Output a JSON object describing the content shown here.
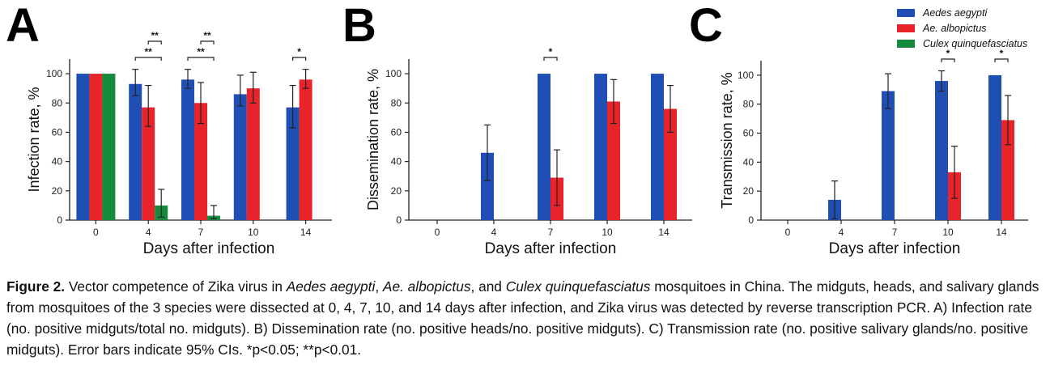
{
  "panel_letters": [
    "A",
    "B",
    "C"
  ],
  "legend": [
    {
      "name": "Aedes aegypti",
      "color": "#1f4fb4"
    },
    {
      "name": "Ae. albopictus",
      "color": "#e8242a"
    },
    {
      "name": "Culex quinquefasciatus",
      "color": "#158a3c"
    }
  ],
  "caption": {
    "label": "Figure 2.",
    "t1": " Vector competence of Zika virus in ",
    "i1": "Aedes aegypti",
    "t2": ", ",
    "i2": "Ae. albopictus",
    "t3": ", and ",
    "i3": "Culex quinquefasciatus",
    "t4": " mosquitoes in China. The midguts, heads, and salivary glands from mosquitoes of the 3 species were dissected at 0, 4, 7, 10, and 14 days after infection, and Zika virus was detected by reverse transcription PCR. A) Infection rate (no. positive midguts/total no. midguts). B) Dissemination rate (no. positive heads/no. positive midguts). C) Transmission rate (no. positive salivary glands/no. positive midguts). Error bars indicate 95% CIs. *p<0.05; **p<0.01."
  },
  "chart_data": [
    {
      "type": "bar",
      "panel": "A",
      "xlabel": "Days after infection",
      "ylabel": "Infection rate, %",
      "categories": [
        "0",
        "4",
        "7",
        "10",
        "14"
      ],
      "ylim": [
        0,
        110
      ],
      "yticks": [
        0,
        20,
        40,
        60,
        80,
        100
      ],
      "grid": false,
      "series": [
        {
          "name": "Aedes aegypti",
          "values": [
            100,
            93,
            96,
            86,
            77
          ],
          "err_low": [
            0,
            8,
            6,
            8,
            14
          ],
          "err_high": [
            0,
            10,
            7,
            13,
            15
          ]
        },
        {
          "name": "Ae. albopictus",
          "values": [
            100,
            77,
            80,
            90,
            96
          ],
          "err_low": [
            0,
            13,
            14,
            10,
            6
          ],
          "err_high": [
            0,
            15,
            14,
            11,
            7
          ]
        },
        {
          "name": "Culex quinquefasciatus",
          "values": [
            100,
            10,
            3,
            null,
            null
          ],
          "err_low": [
            0,
            8,
            2,
            0,
            0
          ],
          "err_high": [
            0,
            11,
            7,
            0,
            0
          ]
        }
      ],
      "significance": [
        {
          "category": "4",
          "from": "Aedes aegypti",
          "to": "Culex quinquefasciatus",
          "label": "**",
          "level": 1
        },
        {
          "category": "4",
          "from": "Ae. albopictus",
          "to": "Culex quinquefasciatus",
          "label": "**",
          "level": 2
        },
        {
          "category": "7",
          "from": "Aedes aegypti",
          "to": "Culex quinquefasciatus",
          "label": "**",
          "level": 1
        },
        {
          "category": "7",
          "from": "Ae. albopictus",
          "to": "Culex quinquefasciatus",
          "label": "**",
          "level": 2
        },
        {
          "category": "14",
          "from": "Aedes aegypti",
          "to": "Ae. albopictus",
          "label": "*",
          "level": 1
        }
      ]
    },
    {
      "type": "bar",
      "panel": "B",
      "xlabel": "Days after infection",
      "ylabel": "Dissemination rate, %",
      "categories": [
        "0",
        "4",
        "7",
        "10",
        "14"
      ],
      "ylim": [
        0,
        110
      ],
      "yticks": [
        0,
        20,
        40,
        60,
        80,
        100
      ],
      "grid": false,
      "series": [
        {
          "name": "Aedes aegypti",
          "values": [
            null,
            46,
            100,
            100,
            100
          ],
          "err_low": [
            0,
            19,
            0,
            0,
            0
          ],
          "err_high": [
            0,
            19,
            0,
            0,
            0
          ]
        },
        {
          "name": "Ae. albopictus",
          "values": [
            null,
            null,
            29,
            81,
            76
          ],
          "err_low": [
            0,
            0,
            19,
            15,
            16
          ],
          "err_high": [
            0,
            0,
            19,
            15,
            16
          ]
        }
      ],
      "significance": [
        {
          "category": "7",
          "from": "Aedes aegypti",
          "to": "Ae. albopictus",
          "label": "*",
          "level": 1
        }
      ]
    },
    {
      "type": "bar",
      "panel": "C",
      "xlabel": "Days after infection",
      "ylabel": "Transmission rate, %",
      "categories": [
        "0",
        "4",
        "7",
        "10",
        "14"
      ],
      "ylim": [
        0,
        110
      ],
      "yticks": [
        0,
        20,
        40,
        60,
        80,
        100
      ],
      "grid": false,
      "series": [
        {
          "name": "Aedes aegypti",
          "values": [
            null,
            14,
            89,
            96,
            100
          ],
          "err_low": [
            0,
            13,
            12,
            7,
            0
          ],
          "err_high": [
            0,
            13,
            12,
            7,
            0
          ]
        },
        {
          "name": "Ae. albopictus",
          "values": [
            null,
            null,
            null,
            33,
            69
          ],
          "err_low": [
            0,
            0,
            0,
            18,
            17
          ],
          "err_high": [
            0,
            0,
            0,
            18,
            17
          ]
        }
      ],
      "significance": [
        {
          "category": "10",
          "from": "Aedes aegypti",
          "to": "Ae. albopictus",
          "label": "*",
          "level": 1
        },
        {
          "category": "14",
          "from": "Aedes aegypti",
          "to": "Ae. albopictus",
          "label": "*",
          "level": 1
        }
      ]
    }
  ]
}
